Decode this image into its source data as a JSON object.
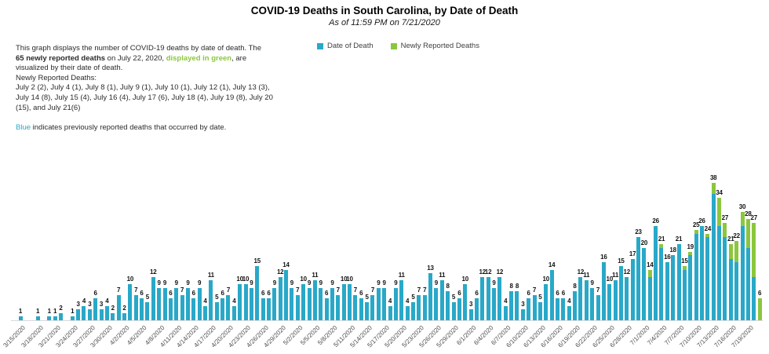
{
  "header": {
    "title": "COVID-19 Deaths in South Carolina, by Date of Death",
    "subtitle": "As of 11:59 PM on 7/21/2020"
  },
  "colors": {
    "date_of_death_blue": "#29A8C8",
    "newly_reported_green": "#8CC63E"
  },
  "legend": {
    "items": [
      {
        "label": "Date of Death",
        "color": "#29A8C8"
      },
      {
        "label": "Newly Reported Deaths",
        "color": "#8CC63E"
      }
    ]
  },
  "description": {
    "lines": [
      {
        "segments": [
          {
            "text": "This graph displays the number of COVID-19 deaths by date of death. The"
          }
        ]
      },
      {
        "segments": [
          {
            "text": "65 newly reported deaths",
            "bold": true
          },
          {
            "text": " on July 22, 2020, "
          },
          {
            "text": "displayed in green",
            "bold": true,
            "color": "#8CC63E"
          },
          {
            "text": ", are"
          }
        ]
      },
      {
        "segments": [
          {
            "text": "visualized by their date of death."
          }
        ]
      },
      {
        "segments": [
          {
            "text": "Newly Reported Deaths:"
          }
        ]
      },
      {
        "segments": [
          {
            "text": "July 2 (2), July 4 (1), July 8 (1), July 9 (1), July 10 (1), July 12 (1), July 13 (3),"
          }
        ]
      },
      {
        "segments": [
          {
            "text": "July 14 (8), July 15 (4), July 16 (4), July 17 (6), July 18 (4), July 19 (8), July 20"
          }
        ]
      },
      {
        "segments": [
          {
            "text": "(15), and July 21(6)"
          }
        ]
      },
      {
        "segments": [
          {
            "text": " "
          }
        ]
      },
      {
        "segments": [
          {
            "text": "Blue",
            "color": "#29A8C8"
          },
          {
            "text": " indicates previously reported deaths that occurred by date."
          }
        ]
      }
    ]
  },
  "chart_data": {
    "type": "bar",
    "stacked": true,
    "title": "COVID-19 Deaths in South Carolina, by Date of Death",
    "xlabel": "",
    "ylabel": "",
    "ylim": [
      0,
      40
    ],
    "grid": false,
    "legend_position": "top",
    "value_labels": true,
    "x_tick_interval_days": 3,
    "x_first_tick": "3/15/2020",
    "x_last_tick": "7/19/2020",
    "series": [
      {
        "name": "Date of Death",
        "color": "#29A8C8"
      },
      {
        "name": "Newly Reported Deaths",
        "color": "#8CC63E"
      }
    ],
    "days": [
      {
        "date": "3/15/2020",
        "total": 1,
        "new": 0
      },
      {
        "date": "3/16/2020",
        "total": 0,
        "new": 0
      },
      {
        "date": "3/17/2020",
        "total": 0,
        "new": 0
      },
      {
        "date": "3/18/2020",
        "total": 1,
        "new": 0
      },
      {
        "date": "3/19/2020",
        "total": 0,
        "new": 0
      },
      {
        "date": "3/20/2020",
        "total": 1,
        "new": 0
      },
      {
        "date": "3/21/2020",
        "total": 1,
        "new": 0
      },
      {
        "date": "3/22/2020",
        "total": 2,
        "new": 0
      },
      {
        "date": "3/23/2020",
        "total": 0,
        "new": 0
      },
      {
        "date": "3/24/2020",
        "total": 1,
        "new": 0
      },
      {
        "date": "3/25/2020",
        "total": 3,
        "new": 0
      },
      {
        "date": "3/26/2020",
        "total": 4,
        "new": 0
      },
      {
        "date": "3/27/2020",
        "total": 3,
        "new": 0
      },
      {
        "date": "3/28/2020",
        "total": 6,
        "new": 0
      },
      {
        "date": "3/29/2020",
        "total": 3,
        "new": 0
      },
      {
        "date": "3/30/2020",
        "total": 4,
        "new": 0
      },
      {
        "date": "3/31/2020",
        "total": 2,
        "new": 0
      },
      {
        "date": "4/1/2020",
        "total": 7,
        "new": 0
      },
      {
        "date": "4/2/2020",
        "total": 2,
        "new": 0
      },
      {
        "date": "4/3/2020",
        "total": 10,
        "new": 0
      },
      {
        "date": "4/4/2020",
        "total": 7,
        "new": 0
      },
      {
        "date": "4/5/2020",
        "total": 6,
        "new": 0
      },
      {
        "date": "4/6/2020",
        "total": 5,
        "new": 0
      },
      {
        "date": "4/7/2020",
        "total": 12,
        "new": 0
      },
      {
        "date": "4/8/2020",
        "total": 9,
        "new": 0
      },
      {
        "date": "4/9/2020",
        "total": 9,
        "new": 0
      },
      {
        "date": "4/10/2020",
        "total": 6,
        "new": 0
      },
      {
        "date": "4/11/2020",
        "total": 9,
        "new": 0
      },
      {
        "date": "4/12/2020",
        "total": 7,
        "new": 0
      },
      {
        "date": "4/13/2020",
        "total": 9,
        "new": 0
      },
      {
        "date": "4/14/2020",
        "total": 6,
        "new": 0
      },
      {
        "date": "4/15/2020",
        "total": 9,
        "new": 0
      },
      {
        "date": "4/16/2020",
        "total": 4,
        "new": 0
      },
      {
        "date": "4/17/2020",
        "total": 11,
        "new": 0
      },
      {
        "date": "4/18/2020",
        "total": 5,
        "new": 0
      },
      {
        "date": "4/19/2020",
        "total": 6,
        "new": 0
      },
      {
        "date": "4/20/2020",
        "total": 7,
        "new": 0
      },
      {
        "date": "4/21/2020",
        "total": 4,
        "new": 0
      },
      {
        "date": "4/22/2020",
        "total": 10,
        "new": 0
      },
      {
        "date": "4/23/2020",
        "total": 10,
        "new": 0
      },
      {
        "date": "4/24/2020",
        "total": 9,
        "new": 0
      },
      {
        "date": "4/25/2020",
        "total": 15,
        "new": 0
      },
      {
        "date": "4/26/2020",
        "total": 6,
        "new": 0
      },
      {
        "date": "4/27/2020",
        "total": 6,
        "new": 0
      },
      {
        "date": "4/28/2020",
        "total": 9,
        "new": 0
      },
      {
        "date": "4/29/2020",
        "total": 12,
        "new": 0
      },
      {
        "date": "4/30/2020",
        "total": 14,
        "new": 0
      },
      {
        "date": "5/1/2020",
        "total": 9,
        "new": 0
      },
      {
        "date": "5/2/2020",
        "total": 7,
        "new": 0
      },
      {
        "date": "5/3/2020",
        "total": 10,
        "new": 0
      },
      {
        "date": "5/4/2020",
        "total": 9,
        "new": 0
      },
      {
        "date": "5/5/2020",
        "total": 11,
        "new": 0
      },
      {
        "date": "5/6/2020",
        "total": 9,
        "new": 0
      },
      {
        "date": "5/7/2020",
        "total": 6,
        "new": 0
      },
      {
        "date": "5/8/2020",
        "total": 9,
        "new": 0
      },
      {
        "date": "5/9/2020",
        "total": 7,
        "new": 0
      },
      {
        "date": "5/10/2020",
        "total": 10,
        "new": 0
      },
      {
        "date": "5/11/2020",
        "total": 10,
        "new": 0
      },
      {
        "date": "5/12/2020",
        "total": 7,
        "new": 0
      },
      {
        "date": "5/13/2020",
        "total": 6,
        "new": 0
      },
      {
        "date": "5/14/2020",
        "total": 5,
        "new": 0
      },
      {
        "date": "5/15/2020",
        "total": 7,
        "new": 0
      },
      {
        "date": "5/16/2020",
        "total": 9,
        "new": 0
      },
      {
        "date": "5/17/2020",
        "total": 9,
        "new": 0
      },
      {
        "date": "5/18/2020",
        "total": 4,
        "new": 0
      },
      {
        "date": "5/19/2020",
        "total": 9,
        "new": 0
      },
      {
        "date": "5/20/2020",
        "total": 11,
        "new": 0
      },
      {
        "date": "5/21/2020",
        "total": 4,
        "new": 0
      },
      {
        "date": "5/22/2020",
        "total": 5,
        "new": 0
      },
      {
        "date": "5/23/2020",
        "total": 7,
        "new": 0
      },
      {
        "date": "5/24/2020",
        "total": 7,
        "new": 0
      },
      {
        "date": "5/25/2020",
        "total": 13,
        "new": 0
      },
      {
        "date": "5/26/2020",
        "total": 9,
        "new": 0
      },
      {
        "date": "5/27/2020",
        "total": 11,
        "new": 0
      },
      {
        "date": "5/28/2020",
        "total": 8,
        "new": 0
      },
      {
        "date": "5/29/2020",
        "total": 5,
        "new": 0
      },
      {
        "date": "5/30/2020",
        "total": 6,
        "new": 0
      },
      {
        "date": "5/31/2020",
        "total": 10,
        "new": 0
      },
      {
        "date": "6/1/2020",
        "total": 3,
        "new": 0
      },
      {
        "date": "6/2/2020",
        "total": 6,
        "new": 0
      },
      {
        "date": "6/3/2020",
        "total": 12,
        "new": 0
      },
      {
        "date": "6/4/2020",
        "total": 12,
        "new": 0
      },
      {
        "date": "6/5/2020",
        "total": 9,
        "new": 0
      },
      {
        "date": "6/6/2020",
        "total": 12,
        "new": 0
      },
      {
        "date": "6/7/2020",
        "total": 4,
        "new": 0
      },
      {
        "date": "6/8/2020",
        "total": 8,
        "new": 0
      },
      {
        "date": "6/9/2020",
        "total": 8,
        "new": 0
      },
      {
        "date": "6/10/2020",
        "total": 3,
        "new": 0
      },
      {
        "date": "6/11/2020",
        "total": 6,
        "new": 0
      },
      {
        "date": "6/12/2020",
        "total": 7,
        "new": 0
      },
      {
        "date": "6/13/2020",
        "total": 5,
        "new": 0
      },
      {
        "date": "6/14/2020",
        "total": 10,
        "new": 0
      },
      {
        "date": "6/15/2020",
        "total": 14,
        "new": 0
      },
      {
        "date": "6/16/2020",
        "total": 6,
        "new": 0
      },
      {
        "date": "6/17/2020",
        "total": 6,
        "new": 0
      },
      {
        "date": "6/18/2020",
        "total": 4,
        "new": 0
      },
      {
        "date": "6/19/2020",
        "total": 8,
        "new": 0
      },
      {
        "date": "6/20/2020",
        "total": 12,
        "new": 0
      },
      {
        "date": "6/21/2020",
        "total": 11,
        "new": 0
      },
      {
        "date": "6/22/2020",
        "total": 9,
        "new": 0
      },
      {
        "date": "6/23/2020",
        "total": 7,
        "new": 0
      },
      {
        "date": "6/24/2020",
        "total": 16,
        "new": 0
      },
      {
        "date": "6/25/2020",
        "total": 10,
        "new": 0
      },
      {
        "date": "6/26/2020",
        "total": 11,
        "new": 0
      },
      {
        "date": "6/27/2020",
        "total": 15,
        "new": 0
      },
      {
        "date": "6/28/2020",
        "total": 12,
        "new": 0
      },
      {
        "date": "6/29/2020",
        "total": 17,
        "new": 0
      },
      {
        "date": "6/30/2020",
        "total": 23,
        "new": 0
      },
      {
        "date": "7/1/2020",
        "total": 20,
        "new": 0
      },
      {
        "date": "7/2/2020",
        "total": 14,
        "new": 2
      },
      {
        "date": "7/3/2020",
        "total": 26,
        "new": 0
      },
      {
        "date": "7/4/2020",
        "total": 21,
        "new": 1
      },
      {
        "date": "7/5/2020",
        "total": 16,
        "new": 0
      },
      {
        "date": "7/6/2020",
        "total": 18,
        "new": 0
      },
      {
        "date": "7/7/2020",
        "total": 21,
        "new": 0
      },
      {
        "date": "7/8/2020",
        "total": 15,
        "new": 1
      },
      {
        "date": "7/9/2020",
        "total": 19,
        "new": 1
      },
      {
        "date": "7/10/2020",
        "total": 25,
        "new": 1
      },
      {
        "date": "7/11/2020",
        "total": 26,
        "new": 0
      },
      {
        "date": "7/12/2020",
        "total": 24,
        "new": 1
      },
      {
        "date": "7/13/2020",
        "total": 38,
        "new": 3
      },
      {
        "date": "7/14/2020",
        "total": 34,
        "new": 8
      },
      {
        "date": "7/15/2020",
        "total": 27,
        "new": 4
      },
      {
        "date": "7/16/2020",
        "total": 21,
        "new": 4
      },
      {
        "date": "7/17/2020",
        "total": 22,
        "new": 6
      },
      {
        "date": "7/18/2020",
        "total": 30,
        "new": 4
      },
      {
        "date": "7/19/2020",
        "total": 28,
        "new": 8
      },
      {
        "date": "7/20/2020",
        "total": 27,
        "new": 15
      },
      {
        "date": "7/21/2020",
        "total": 6,
        "new": 6
      }
    ]
  }
}
